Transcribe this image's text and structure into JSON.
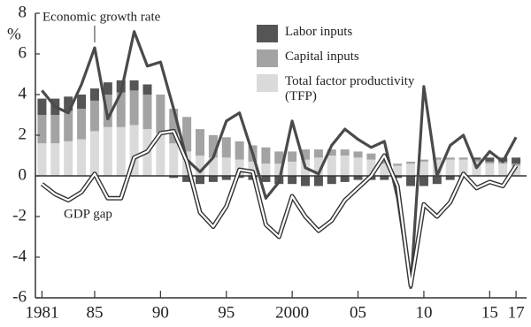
{
  "chart_data": {
    "type": "bar",
    "ylabel": "%",
    "x": [
      1981,
      1982,
      1983,
      1984,
      1985,
      1986,
      1987,
      1988,
      1989,
      1990,
      1991,
      1992,
      1993,
      1994,
      1995,
      1996,
      1997,
      1998,
      1999,
      2000,
      2001,
      2002,
      2003,
      2004,
      2005,
      2006,
      2007,
      2008,
      2009,
      2010,
      2011,
      2012,
      2013,
      2014,
      2015,
      2016,
      2017
    ],
    "xlim": [
      1980.5,
      2017.8
    ],
    "xticks": [
      1981,
      {
        "value": 1985,
        "label": "85"
      },
      {
        "value": 1990,
        "label": "90"
      },
      {
        "value": 1995,
        "label": "95"
      },
      2000,
      {
        "value": 2005,
        "label": "05"
      },
      {
        "value": 2010,
        "label": "10"
      },
      {
        "value": 2015,
        "label": "15"
      },
      {
        "value": 2017,
        "label": "17"
      }
    ],
    "ylim": [
      -6,
      8
    ],
    "yticks": [
      -6,
      -4,
      -2,
      0,
      2,
      4,
      6,
      8
    ],
    "series": [
      {
        "name": "Total factor productivity (TFP)",
        "type": "bar",
        "color": "#dadada",
        "values": [
          1.6,
          1.6,
          1.7,
          1.8,
          2.2,
          2.4,
          2.4,
          2.5,
          2.3,
          2.1,
          1.6,
          1.2,
          1.0,
          0.9,
          0.9,
          0.8,
          0.7,
          0.6,
          0.6,
          0.7,
          0.8,
          0.9,
          1.0,
          1.0,
          0.9,
          0.8,
          0.6,
          0.5,
          0.6,
          0.7,
          0.8,
          0.8,
          0.8,
          0.7,
          0.6,
          0.6,
          0.5
        ]
      },
      {
        "name": "Capital inputs",
        "type": "bar",
        "color": "#a3a3a3",
        "values": [
          1.4,
          1.4,
          1.5,
          1.5,
          1.5,
          1.6,
          1.7,
          1.7,
          1.7,
          1.9,
          1.7,
          1.7,
          1.3,
          1.1,
          1.0,
          0.9,
          0.8,
          0.8,
          0.6,
          0.5,
          0.5,
          0.4,
          0.3,
          0.3,
          0.3,
          0.3,
          0.2,
          0.1,
          0.1,
          0.1,
          0.1,
          0.1,
          0.1,
          0.1,
          0.1,
          0.1,
          0.1
        ]
      },
      {
        "name": "Labor inputs",
        "type": "bar",
        "color": "#555555",
        "values": [
          0.8,
          0.8,
          0.7,
          0.7,
          0.6,
          0.6,
          0.6,
          0.5,
          0.5,
          0.0,
          -0.1,
          -0.3,
          -0.4,
          -0.3,
          -0.2,
          -0.1,
          -0.2,
          -0.3,
          -0.4,
          -0.4,
          -0.5,
          -0.5,
          -0.4,
          -0.3,
          -0.2,
          -0.2,
          -0.2,
          -0.1,
          -0.5,
          -0.5,
          -0.4,
          -0.2,
          -0.1,
          0.1,
          0.2,
          0.2,
          0.3
        ]
      },
      {
        "name": "Economic growth rate",
        "type": "line",
        "color": "#4a4a4a",
        "values": [
          4.2,
          3.4,
          3.1,
          4.5,
          6.3,
          2.8,
          4.1,
          7.1,
          5.4,
          5.6,
          3.3,
          0.8,
          0.2,
          0.9,
          2.7,
          3.1,
          1.1,
          -1.1,
          -0.3,
          2.7,
          0.4,
          0.1,
          1.5,
          2.3,
          1.8,
          1.4,
          1.7,
          -1.1,
          -5.5,
          4.4,
          0.0,
          1.5,
          2.0,
          0.4,
          1.2,
          0.7,
          1.9
        ]
      },
      {
        "name": "GDP gap",
        "type": "line",
        "style": "double",
        "color": "#333333",
        "values": [
          -0.4,
          -0.9,
          -1.2,
          -0.8,
          0.1,
          -1.1,
          -1.1,
          0.9,
          1.2,
          2.1,
          2.2,
          0.7,
          -1.8,
          -2.5,
          -1.5,
          0.3,
          0.2,
          -2.4,
          -3.0,
          -1.0,
          -2.0,
          -2.7,
          -2.2,
          -1.2,
          -0.6,
          0.0,
          1.0,
          -0.5,
          -5.4,
          -1.4,
          -2.0,
          -1.3,
          0.1,
          -0.6,
          -0.3,
          -0.5,
          0.5
        ]
      }
    ]
  }
}
